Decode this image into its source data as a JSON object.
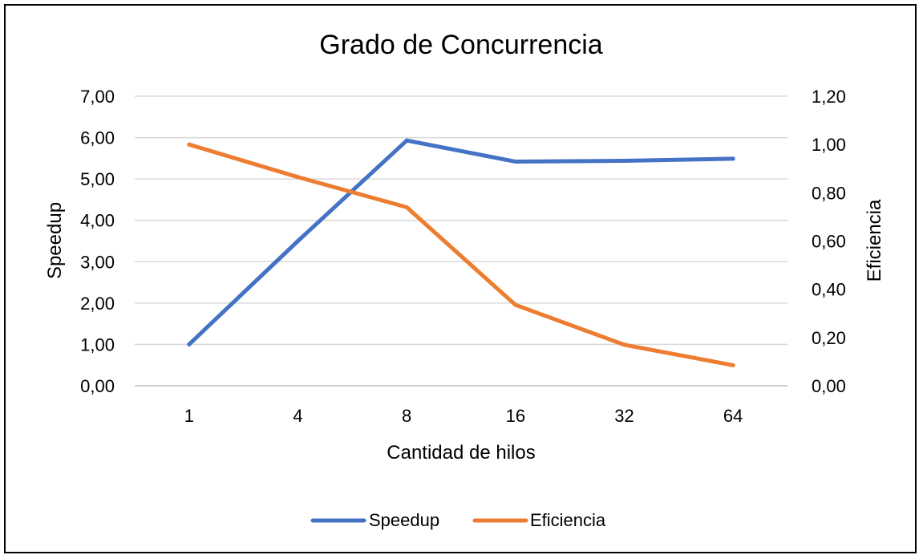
{
  "chart_data": {
    "type": "line",
    "title": "Grado de Concurrencia",
    "xlabel": "Cantidad de hilos",
    "ylabel": "Speedup",
    "y2label": "Eficiencia",
    "categories": [
      "1",
      "4",
      "8",
      "16",
      "32",
      "64"
    ],
    "ylim": [
      0,
      7
    ],
    "y2lim": [
      0,
      1.2
    ],
    "y_ticks": [
      "0,00",
      "1,00",
      "2,00",
      "3,00",
      "4,00",
      "5,00",
      "6,00",
      "7,00"
    ],
    "y2_ticks": [
      "0,00",
      "0,20",
      "0,40",
      "0,60",
      "0,80",
      "1,00",
      "1,20"
    ],
    "grid": true,
    "legend_position": "bottom",
    "series": [
      {
        "name": "Speedup",
        "axis": "left",
        "color": "#4472C4",
        "values": [
          1.0,
          3.5,
          5.93,
          5.42,
          5.44,
          5.49
        ]
      },
      {
        "name": "Eficiencia",
        "axis": "right",
        "color": "#ED7D31",
        "values": [
          1.0,
          0.865,
          0.74,
          0.335,
          0.17,
          0.085
        ]
      }
    ]
  }
}
